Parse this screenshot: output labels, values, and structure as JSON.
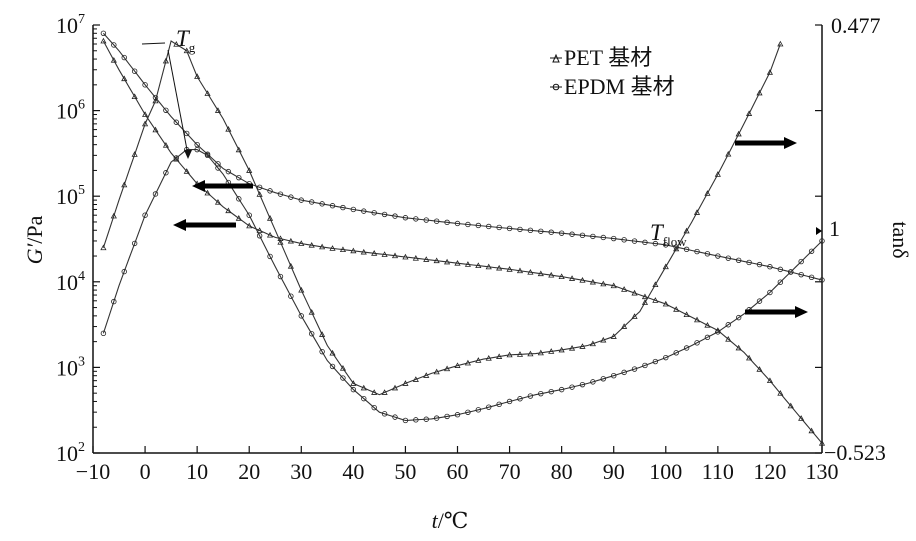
{
  "chart_data": {
    "type": "line",
    "x_axis": {
      "label_var": "t",
      "label_unit": "/℃",
      "range": [
        -10,
        130
      ],
      "ticks": [
        -10,
        0,
        10,
        20,
        30,
        40,
        50,
        60,
        70,
        80,
        90,
        100,
        110,
        120,
        130
      ],
      "tick_labels": [
        "−10",
        "0",
        "10",
        "20",
        "30",
        "40",
        "50",
        "60",
        "70",
        "80",
        "90",
        "100",
        "110",
        "120",
        "130"
      ]
    },
    "y_axis_left": {
      "label_var": "G′",
      "label_unit": "/Pa",
      "scale": "log",
      "range": [
        100,
        10000000
      ],
      "ticks": [
        100,
        1000,
        10000,
        100000,
        1000000,
        10000000
      ],
      "tick_base": "10",
      "tick_exponents": [
        "2",
        "3",
        "4",
        "5",
        "6",
        "7"
      ]
    },
    "y_axis_right": {
      "label": "tanδ",
      "scale": "log",
      "top_label": "0.477",
      "middle_label": "1",
      "bottom_label": "−0.523"
    },
    "legend": {
      "position": "top-right",
      "entries": [
        "PET 基材",
        "EPDM 基材"
      ]
    },
    "grid": false,
    "annotations": {
      "tg_main": "T",
      "tg_sub": "g",
      "tflow_main": "T",
      "tflow_sub": "flow"
    },
    "series": [
      {
        "name": "PET 基材",
        "quantity": "G′",
        "axis": "left",
        "marker": "triangle",
        "x": [
          -8,
          -5,
          0,
          5,
          10,
          15,
          20,
          25,
          30,
          35,
          40,
          50,
          60,
          70,
          80,
          90,
          100,
          110,
          115,
          120,
          125,
          130
        ],
        "y": [
          6500000,
          3000000,
          900000,
          320000,
          140000,
          75000,
          45000,
          33000,
          28000,
          25000,
          23000,
          19500,
          16500,
          14000,
          11500,
          9000,
          5500,
          2700,
          1500,
          700,
          300,
          130
        ]
      },
      {
        "name": "EPDM 基材",
        "quantity": "G′",
        "axis": "left",
        "marker": "circle",
        "x": [
          -8,
          -5,
          0,
          5,
          10,
          15,
          20,
          25,
          30,
          40,
          50,
          60,
          70,
          80,
          90,
          100,
          110,
          120,
          130
        ],
        "y": [
          8000000,
          5000000,
          2000000,
          850000,
          400000,
          210000,
          140000,
          110000,
          90000,
          70000,
          56000,
          48000,
          42000,
          37000,
          32000,
          27000,
          20000,
          15000,
          10500
        ]
      },
      {
        "name": "PET 基材",
        "quantity": "tanδ",
        "axis": "right",
        "marker": "triangle",
        "x": [
          -8,
          -5,
          0,
          2,
          5,
          8,
          10,
          15,
          20,
          25,
          30,
          35,
          40,
          45,
          50,
          55,
          60,
          65,
          70,
          75,
          80,
          85,
          90,
          95,
          100,
          105,
          110,
          115,
          120,
          122
        ],
        "y": [
          25000,
          90000,
          700000,
          1300000,
          6500000,
          5000000,
          2500000,
          800000,
          200000,
          40000,
          8000,
          1800,
          650,
          480,
          650,
          850,
          1050,
          1250,
          1400,
          1450,
          1600,
          1800,
          2300,
          4500,
          15000,
          50000,
          180000,
          700000,
          2800000,
          6000000
        ]
      },
      {
        "name": "EPDM 基材",
        "quantity": "tanδ",
        "axis": "right",
        "marker": "circle",
        "x": [
          -8,
          -5,
          0,
          5,
          8,
          10,
          12,
          15,
          20,
          25,
          30,
          35,
          40,
          45,
          50,
          55,
          60,
          65,
          70,
          75,
          80,
          85,
          90,
          95,
          100,
          105,
          110,
          115,
          120,
          125,
          130
        ],
        "y": [
          2500,
          9000,
          60000,
          250000,
          350000,
          350000,
          300000,
          180000,
          60000,
          15000,
          4000,
          1200,
          550,
          300,
          240,
          250,
          280,
          330,
          400,
          480,
          550,
          650,
          800,
          1000,
          1300,
          1800,
          2600,
          4200,
          7500,
          15000,
          30000
        ]
      }
    ],
    "arrows": [
      {
        "series": "PET 基材 G′",
        "points_to": "left"
      },
      {
        "series": "EPDM 基材 G′",
        "points_to": "left"
      },
      {
        "series": "PET 基材 tanδ",
        "points_to": "right"
      },
      {
        "series": "EPDM 基材 tanδ",
        "points_to": "right"
      }
    ]
  }
}
